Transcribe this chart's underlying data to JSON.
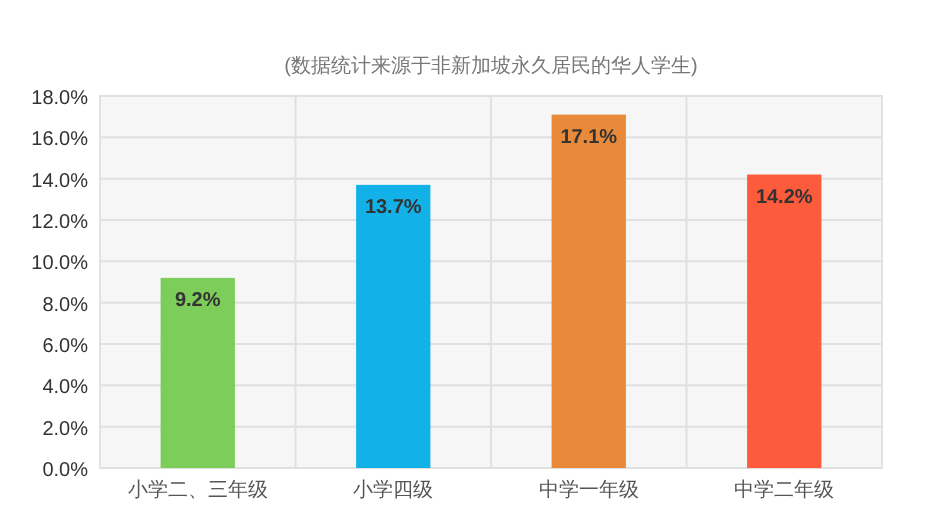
{
  "chart_data": {
    "type": "bar",
    "subtitle": "(数据统计来源于非新加坡永久居民的华人学生)",
    "categories": [
      "小学二、三年级",
      "小学四级",
      "中学一年级",
      "中学二年级"
    ],
    "values": [
      9.2,
      13.7,
      17.1,
      14.2
    ],
    "colors": [
      "#7dcd5a",
      "#12b1e8",
      "#e88a3a",
      "#fd5c3c"
    ],
    "value_labels": [
      "9.2%",
      "13.7%",
      "17.1%",
      "14.2%"
    ],
    "ylim": [
      0,
      18
    ],
    "yticks": [
      {
        "value": 0,
        "label": "0.0%"
      },
      {
        "value": 2,
        "label": "2.0%"
      },
      {
        "value": 4,
        "label": "4.0%"
      },
      {
        "value": 6,
        "label": "6.0%"
      },
      {
        "value": 8,
        "label": "8.0%"
      },
      {
        "value": 10,
        "label": "10.0%"
      },
      {
        "value": 12,
        "label": "12.0%"
      },
      {
        "value": 14,
        "label": "14.0%"
      },
      {
        "value": 16,
        "label": "16.0%"
      },
      {
        "value": 18,
        "label": "18.0%"
      }
    ],
    "grid": true
  }
}
